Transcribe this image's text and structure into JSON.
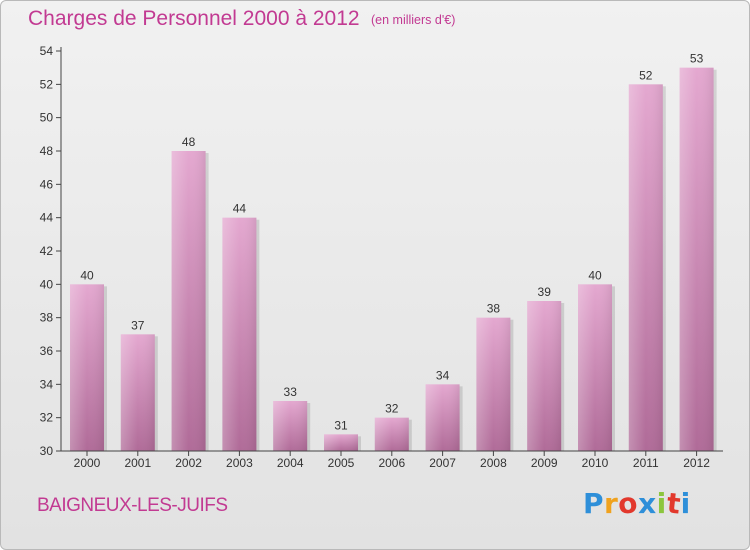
{
  "header": {
    "title": "Charges de Personnel 2000 à 2012",
    "subtitle": "(en milliers d'€)"
  },
  "footer": {
    "commune": "BAIGNEUX-LES-JUIFS",
    "logo_letters": [
      "P",
      "r",
      "o",
      "x",
      "i",
      "t",
      "i"
    ],
    "logo_colors": [
      "#2e8fd9",
      "#f0a21e",
      "#e2382c",
      "#2e8fd9",
      "#8cc63e",
      "#e2382c",
      "#2e8fd9"
    ]
  },
  "colors": {
    "title": "#c23a92",
    "bar_top": "#e4a8d0",
    "bar_bottom": "#b06b98",
    "axis": "#444444"
  },
  "chart_data": {
    "type": "bar",
    "title": "Charges de Personnel 2000 à 2012",
    "subtitle": "(en milliers d'€)",
    "categories": [
      "2000",
      "2001",
      "2002",
      "2003",
      "2004",
      "2005",
      "2006",
      "2007",
      "2008",
      "2009",
      "2010",
      "2011",
      "2012"
    ],
    "values": [
      40,
      37,
      48,
      44,
      33,
      31,
      32,
      34,
      38,
      39,
      40,
      52,
      53
    ],
    "ylim": [
      30,
      54
    ],
    "yticks": [
      30,
      32,
      34,
      36,
      38,
      40,
      42,
      44,
      46,
      48,
      50,
      52,
      54
    ],
    "grid": false,
    "data_labels": true
  }
}
